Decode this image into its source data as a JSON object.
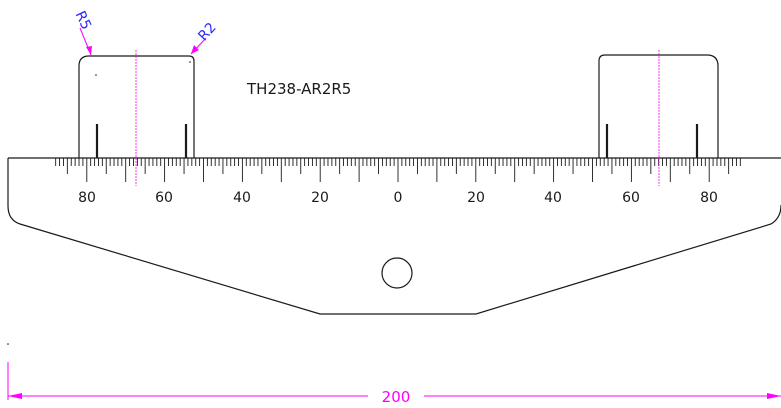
{
  "part_label": "TH238-AR2R5",
  "radius_labels": {
    "left": "R5",
    "right": "R2"
  },
  "dimension": {
    "value": "200"
  },
  "scale": {
    "labels_left": [
      "80",
      "60",
      "40",
      "20"
    ],
    "label_center": "0",
    "labels_right": [
      "20",
      "40",
      "60",
      "80"
    ]
  },
  "colors": {
    "line": "#1a1a1a",
    "dimension": "#ff00ff",
    "radius_text": "#2a2aff"
  }
}
